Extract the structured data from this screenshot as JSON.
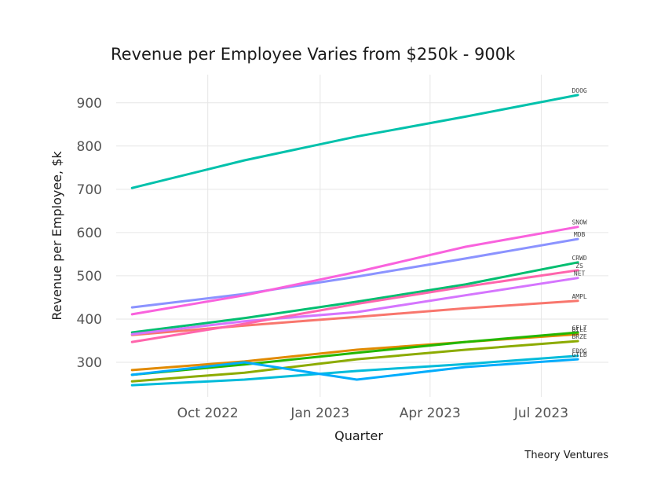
{
  "chart_data": {
    "type": "line",
    "title": "Revenue per Employee Varies from $250k - 900k",
    "xlabel": "Quarter",
    "ylabel": "Revenue per Employee, $k",
    "caption": "Theory Ventures",
    "ylim": [
      220,
      965
    ],
    "yticks": [
      300,
      400,
      500,
      600,
      700,
      800,
      900
    ],
    "xticks": [
      {
        "label": "Oct 2022",
        "date": "2022-10-01"
      },
      {
        "label": "Jan 2023",
        "date": "2023-01-01"
      },
      {
        "label": "Apr 2023",
        "date": "2023-04-01"
      },
      {
        "label": "Jul 2023",
        "date": "2023-07-01"
      }
    ],
    "xlim": [
      "2022-07-18",
      "2023-08-25"
    ],
    "grid": true,
    "legend": "direct labels at line ends (right)",
    "x": [
      "2022-07-31",
      "2022-10-31",
      "2023-01-31",
      "2023-04-30",
      "2023-07-31"
    ],
    "series": [
      {
        "name": "AMPL",
        "color": "#F8766D",
        "values": [
          363,
          385,
          405,
          425,
          442
        ]
      },
      {
        "name": "BILL",
        "color": "#E18A00",
        "values": [
          282,
          302,
          329,
          347,
          365
        ]
      },
      {
        "name": "BRZE",
        "color": "#8CAB00",
        "values": [
          256,
          276,
          307,
          329,
          349
        ]
      },
      {
        "name": "CFLT",
        "color": "#24B700",
        "values": [
          271,
          295,
          322,
          347,
          369
        ]
      },
      {
        "name": "CRWD",
        "color": "#00BE70",
        "values": [
          369,
          402,
          440,
          480,
          531
        ]
      },
      {
        "name": "DOOG",
        "color": "#00C1AB",
        "values": [
          703,
          767,
          822,
          868,
          918
        ]
      },
      {
        "name": "FROG",
        "color": "#00BBDA",
        "values": [
          247,
          260,
          280,
          296,
          315
        ]
      },
      {
        "name": "GTLB",
        "color": "#00ACFC",
        "values": [
          271,
          300,
          260,
          289,
          307
        ]
      },
      {
        "name": "MDB",
        "color": "#8B93FF",
        "values": [
          427,
          458,
          498,
          540,
          585
        ]
      },
      {
        "name": "NET",
        "color": "#D575FE",
        "values": [
          365,
          395,
          416,
          455,
          495
        ]
      },
      {
        "name": "SNOW",
        "color": "#F962DD",
        "values": [
          411,
          455,
          509,
          567,
          613
        ]
      },
      {
        "name": "ZS",
        "color": "#FF65AC",
        "values": [
          347,
          389,
          435,
          475,
          513
        ]
      }
    ]
  }
}
